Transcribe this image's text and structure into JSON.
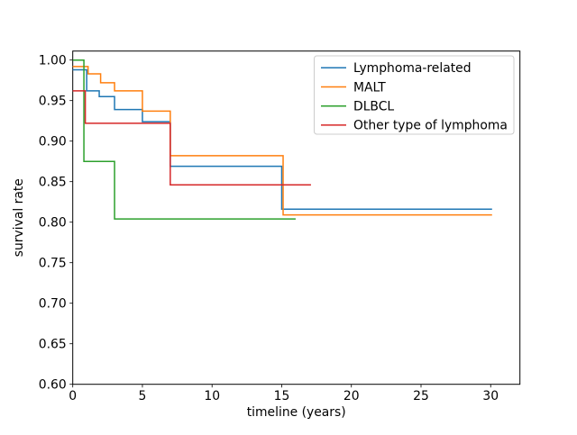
{
  "chart_data": {
    "type": "line",
    "subtype": "step-post-survival",
    "title": "",
    "xlabel": "timeline (years)",
    "ylabel": "survival rate",
    "xlim": [
      0,
      32.1
    ],
    "ylim": [
      0.6,
      1.0111
    ],
    "xticks": [
      0,
      5,
      10,
      15,
      20,
      25,
      30
    ],
    "yticks": [
      1.0,
      0.95,
      0.9,
      0.85,
      0.8,
      0.75,
      0.7,
      0.65,
      0.6
    ],
    "grid": false,
    "legend_position": "upper right",
    "legend_border_color": "#cccccc",
    "axis_color": "#000000",
    "background_color": "#ffffff",
    "series": [
      {
        "name": "Lymphoma-related",
        "color": "#1f77b4",
        "start_value": 0.988,
        "steps": [
          [
            1.0,
            0.962
          ],
          [
            1.9,
            0.955
          ],
          [
            3.0,
            0.939
          ],
          [
            5.0,
            0.924
          ],
          [
            7.0,
            0.869
          ],
          [
            15.0,
            0.816
          ]
        ],
        "end_time": 30.1
      },
      {
        "name": "MALT",
        "color": "#ff7f0e",
        "start_value": 0.992,
        "steps": [
          [
            1.1,
            0.983
          ],
          [
            2.0,
            0.972
          ],
          [
            3.0,
            0.962
          ],
          [
            5.0,
            0.937
          ],
          [
            7.0,
            0.882
          ],
          [
            15.1,
            0.809
          ]
        ],
        "end_time": 30.1
      },
      {
        "name": "DLBCL",
        "color": "#2ca02c",
        "start_value": 1.0,
        "steps": [
          [
            0.8,
            0.875
          ],
          [
            3.0,
            0.804
          ]
        ],
        "end_time": 16.0
      },
      {
        "name": "Other type of lymphoma",
        "color": "#d62728",
        "start_value": 0.962,
        "steps": [
          [
            0.9,
            0.922
          ],
          [
            7.0,
            0.846
          ]
        ],
        "end_time": 17.1
      }
    ]
  }
}
